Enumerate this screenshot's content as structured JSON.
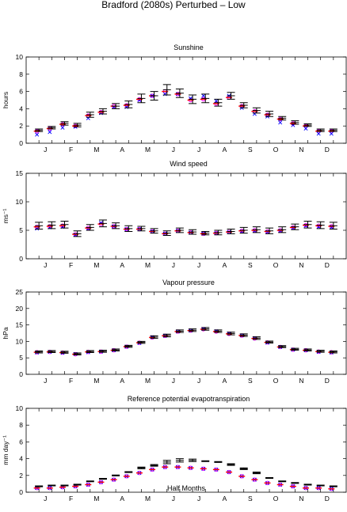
{
  "figure": {
    "title": "Bradford (2080s) Perturbed – Low",
    "xlabel": "Half Months",
    "month_labels": [
      "J",
      "F",
      "M",
      "A",
      "M",
      "J",
      "J",
      "A",
      "S",
      "O",
      "N",
      "D"
    ]
  },
  "colors": {
    "errorbar": "#000000",
    "mean": "#ff0000",
    "blue_marker": "#0000ff",
    "magenta_marker": "#ff00ff"
  },
  "chart_data": [
    {
      "type": "errorbar",
      "title": "Sunshine",
      "ylabel": "hours",
      "ylim": [
        0,
        10
      ],
      "yticks": [
        0,
        2,
        4,
        6,
        8,
        10
      ],
      "x": [
        1,
        2,
        3,
        4,
        5,
        6,
        7,
        8,
        9,
        10,
        11,
        12,
        13,
        14,
        15,
        16,
        17,
        18,
        19,
        20,
        21,
        22,
        23,
        24
      ],
      "series": [
        {
          "name": "",
          "marker": "errorbar",
          "values": [
            1.5,
            1.8,
            2.3,
            2.1,
            3.3,
            3.7,
            4.3,
            4.5,
            5.2,
            5.5,
            6.2,
            5.8,
            5.1,
            5.2,
            4.7,
            5.5,
            4.4,
            3.8,
            3.4,
            2.9,
            2.4,
            2.1,
            1.5,
            1.5
          ],
          "err": [
            0.15,
            0.15,
            0.2,
            0.2,
            0.3,
            0.3,
            0.3,
            0.4,
            0.5,
            0.5,
            0.6,
            0.5,
            0.5,
            0.5,
            0.4,
            0.4,
            0.3,
            0.3,
            0.3,
            0.2,
            0.2,
            0.15,
            0.15,
            0.15
          ]
        },
        {
          "name": "",
          "marker": "circle",
          "values": [
            1.4,
            1.7,
            2.2,
            2.0,
            3.2,
            3.6,
            4.3,
            4.4,
            5.1,
            5.5,
            6.0,
            5.7,
            5.0,
            5.1,
            4.6,
            5.3,
            4.3,
            3.7,
            3.3,
            2.8,
            2.3,
            2.0,
            1.4,
            1.4
          ]
        },
        {
          "name": "",
          "marker": "cross",
          "values": [
            1.0,
            1.3,
            1.8,
            1.9,
            2.9,
            3.5,
            4.2,
            4.2,
            5.0,
            5.5,
            5.7,
            5.7,
            5.2,
            5.5,
            4.9,
            5.5,
            4.1,
            3.4,
            3.1,
            2.4,
            2.1,
            1.7,
            1.1,
            1.1
          ]
        }
      ]
    },
    {
      "type": "errorbar",
      "title": "Wind speed",
      "ylabel": "ms⁻¹",
      "ylim": [
        0,
        15
      ],
      "yticks": [
        0,
        5,
        10,
        15
      ],
      "x": [
        1,
        2,
        3,
        4,
        5,
        6,
        7,
        8,
        9,
        10,
        11,
        12,
        13,
        14,
        15,
        16,
        17,
        18,
        19,
        20,
        21,
        22,
        23,
        24
      ],
      "series": [
        {
          "name": "",
          "marker": "errorbar",
          "values": [
            5.8,
            5.9,
            6.0,
            4.4,
            5.5,
            6.2,
            5.8,
            5.3,
            5.3,
            4.9,
            4.5,
            5.0,
            4.7,
            4.5,
            4.6,
            4.8,
            5.0,
            5.1,
            4.9,
            5.1,
            5.6,
            6.0,
            5.9,
            5.8
          ],
          "err": [
            0.6,
            0.6,
            0.6,
            0.5,
            0.5,
            0.6,
            0.5,
            0.5,
            0.4,
            0.4,
            0.4,
            0.4,
            0.4,
            0.3,
            0.4,
            0.4,
            0.5,
            0.5,
            0.5,
            0.5,
            0.5,
            0.6,
            0.6,
            0.6
          ]
        },
        {
          "name": "",
          "marker": "circle",
          "values": [
            5.6,
            5.7,
            5.8,
            4.3,
            5.4,
            6.1,
            5.7,
            5.2,
            5.2,
            4.8,
            4.4,
            4.9,
            4.6,
            4.4,
            4.5,
            4.7,
            4.9,
            5.0,
            4.8,
            5.0,
            5.5,
            5.9,
            5.8,
            5.7
          ]
        },
        {
          "name": "",
          "marker": "cross",
          "values": [
            5.3,
            5.5,
            5.6,
            4.2,
            5.3,
            6.3,
            5.7,
            5.2,
            5.2,
            4.8,
            4.4,
            4.9,
            4.6,
            4.4,
            4.5,
            4.7,
            4.8,
            4.9,
            4.7,
            4.9,
            5.4,
            5.8,
            5.6,
            5.5
          ]
        }
      ]
    },
    {
      "type": "errorbar",
      "title": "Vapour pressure",
      "ylabel": "hPa",
      "ylim": [
        0,
        25
      ],
      "yticks": [
        0,
        5,
        10,
        15,
        20,
        25
      ],
      "x": [
        1,
        2,
        3,
        4,
        5,
        6,
        7,
        8,
        9,
        10,
        11,
        12,
        13,
        14,
        15,
        16,
        17,
        18,
        19,
        20,
        21,
        22,
        23,
        24
      ],
      "series": [
        {
          "name": "",
          "marker": "errorbar",
          "values": [
            6.8,
            6.9,
            6.7,
            6.2,
            6.9,
            7.0,
            7.4,
            8.5,
            9.7,
            11.3,
            11.8,
            13.1,
            13.4,
            13.8,
            13.1,
            12.4,
            11.9,
            11.0,
            9.8,
            8.4,
            7.6,
            7.4,
            7.0,
            6.8
          ],
          "err": [
            0.3,
            0.3,
            0.3,
            0.3,
            0.3,
            0.3,
            0.3,
            0.3,
            0.3,
            0.4,
            0.4,
            0.4,
            0.4,
            0.4,
            0.4,
            0.4,
            0.4,
            0.4,
            0.3,
            0.3,
            0.3,
            0.3,
            0.3,
            0.3
          ]
        },
        {
          "name": "",
          "marker": "circle",
          "values": [
            6.7,
            6.8,
            6.6,
            6.1,
            6.8,
            6.9,
            7.3,
            8.4,
            9.6,
            11.2,
            11.7,
            13.0,
            13.3,
            13.7,
            13.0,
            12.3,
            11.8,
            10.9,
            9.7,
            8.3,
            7.5,
            7.3,
            6.9,
            6.7
          ]
        },
        {
          "name": "",
          "marker": "cross",
          "values": [
            6.6,
            6.8,
            6.5,
            6.2,
            6.7,
            6.9,
            7.3,
            8.4,
            9.5,
            11.3,
            11.7,
            13.0,
            13.3,
            13.8,
            13.1,
            12.4,
            11.8,
            11.0,
            9.6,
            8.3,
            7.5,
            7.3,
            6.8,
            6.6
          ]
        }
      ]
    },
    {
      "type": "errorbar",
      "title": "Reference potential evapotranspiration",
      "ylabel": "mm day⁻¹",
      "ylim": [
        0,
        10
      ],
      "yticks": [
        0,
        2,
        4,
        6,
        8,
        10
      ],
      "x": [
        1,
        2,
        3,
        4,
        5,
        6,
        7,
        8,
        9,
        10,
        11,
        12,
        13,
        14,
        15,
        16,
        17,
        18,
        19,
        20,
        21,
        22,
        23,
        24
      ],
      "series": [
        {
          "name": "",
          "marker": "errorbar",
          "values": [
            0.7,
            0.8,
            0.8,
            0.9,
            1.3,
            1.6,
            2.0,
            2.4,
            2.9,
            3.2,
            3.6,
            3.8,
            3.8,
            3.7,
            3.6,
            3.3,
            2.8,
            2.3,
            1.7,
            1.3,
            1.1,
            0.9,
            0.8,
            0.7
          ],
          "err": [
            0.05,
            0.05,
            0.05,
            0.05,
            0.05,
            0.05,
            0.05,
            0.05,
            0.1,
            0.1,
            0.2,
            0.2,
            0.15,
            0.05,
            0.05,
            0.1,
            0.1,
            0.1,
            0.05,
            0.05,
            0.05,
            0.05,
            0.05,
            0.05
          ]
        },
        {
          "name": "",
          "marker": "circle",
          "values": [
            0.5,
            0.5,
            0.6,
            0.7,
            0.9,
            1.2,
            1.5,
            1.9,
            2.3,
            2.7,
            3.0,
            3.0,
            2.9,
            2.8,
            2.7,
            2.4,
            1.9,
            1.5,
            1.1,
            0.9,
            0.7,
            0.5,
            0.5,
            0.4
          ]
        },
        {
          "name": "",
          "marker": "cross",
          "values": [
            0.5,
            0.5,
            0.6,
            0.7,
            0.9,
            1.2,
            1.5,
            1.9,
            2.3,
            2.7,
            3.0,
            3.0,
            2.9,
            2.8,
            2.7,
            2.4,
            1.9,
            1.5,
            1.1,
            0.9,
            0.7,
            0.5,
            0.5,
            0.4
          ]
        }
      ]
    }
  ]
}
